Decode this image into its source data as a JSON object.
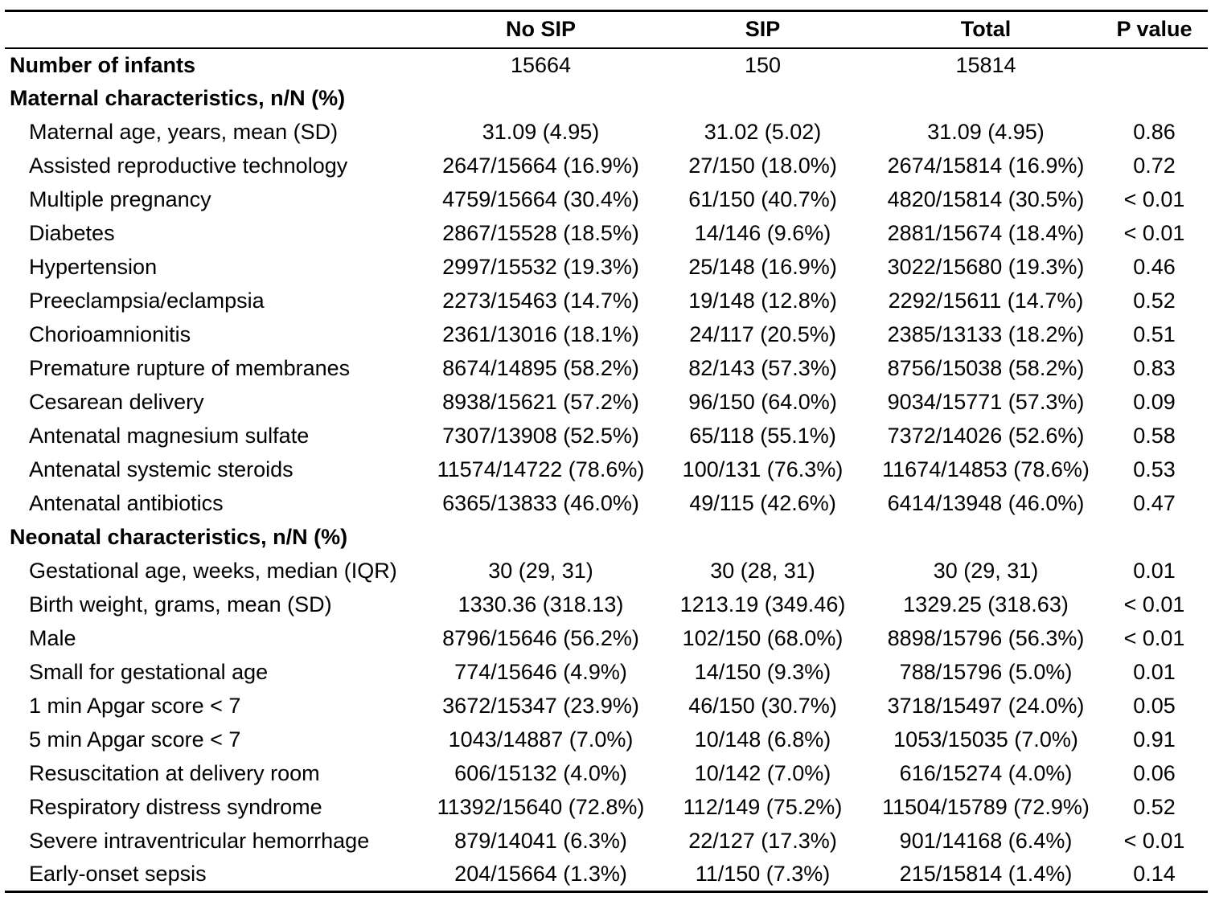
{
  "table": {
    "columns": [
      "",
      "No SIP",
      "SIP",
      "Total",
      "P value"
    ],
    "count_row": {
      "label": "Number of infants",
      "values": [
        "15664",
        "150",
        "15814",
        ""
      ]
    },
    "sections": [
      {
        "title": "Maternal characteristics, n/N (%)",
        "rows": [
          {
            "label": "Maternal age, years, mean (SD)",
            "values": [
              "31.09 (4.95)",
              "31.02 (5.02)",
              "31.09 (4.95)",
              "0.86"
            ]
          },
          {
            "label": "Assisted reproductive technology",
            "values": [
              "2647/15664 (16.9%)",
              "27/150 (18.0%)",
              "2674/15814 (16.9%)",
              "0.72"
            ]
          },
          {
            "label": "Multiple pregnancy",
            "values": [
              "4759/15664 (30.4%)",
              "61/150 (40.7%)",
              "4820/15814 (30.5%)",
              "< 0.01"
            ]
          },
          {
            "label": "Diabetes",
            "values": [
              "2867/15528 (18.5%)",
              "14/146 (9.6%)",
              "2881/15674 (18.4%)",
              "< 0.01"
            ]
          },
          {
            "label": "Hypertension",
            "values": [
              "2997/15532 (19.3%)",
              "25/148 (16.9%)",
              "3022/15680 (19.3%)",
              "0.46"
            ]
          },
          {
            "label": "Preeclampsia/eclampsia",
            "values": [
              "2273/15463 (14.7%)",
              "19/148 (12.8%)",
              "2292/15611 (14.7%)",
              "0.52"
            ]
          },
          {
            "label": "Chorioamnionitis",
            "values": [
              "2361/13016 (18.1%)",
              "24/117 (20.5%)",
              "2385/13133 (18.2%)",
              "0.51"
            ]
          },
          {
            "label": "Premature rupture of membranes",
            "values": [
              "8674/14895 (58.2%)",
              "82/143 (57.3%)",
              "8756/15038 (58.2%)",
              "0.83"
            ]
          },
          {
            "label": "Cesarean delivery",
            "values": [
              "8938/15621 (57.2%)",
              "96/150 (64.0%)",
              "9034/15771 (57.3%)",
              "0.09"
            ]
          },
          {
            "label": "Antenatal magnesium sulfate",
            "values": [
              "7307/13908 (52.5%)",
              "65/118 (55.1%)",
              "7372/14026 (52.6%)",
              "0.58"
            ]
          },
          {
            "label": "Antenatal systemic steroids",
            "values": [
              "11574/14722 (78.6%)",
              "100/131 (76.3%)",
              "11674/14853 (78.6%)",
              "0.53"
            ]
          },
          {
            "label": "Antenatal antibiotics",
            "values": [
              "6365/13833 (46.0%)",
              "49/115 (42.6%)",
              "6414/13948 (46.0%)",
              "0.47"
            ]
          }
        ]
      },
      {
        "title": "Neonatal characteristics, n/N (%)",
        "rows": [
          {
            "label": "Gestational age, weeks, median (IQR)",
            "values": [
              "30 (29, 31)",
              "30 (28, 31)",
              "30 (29, 31)",
              "0.01"
            ]
          },
          {
            "label": "Birth weight, grams, mean (SD)",
            "values": [
              "1330.36 (318.13)",
              "1213.19 (349.46)",
              "1329.25 (318.63)",
              "< 0.01"
            ]
          },
          {
            "label": "Male",
            "values": [
              "8796/15646 (56.2%)",
              "102/150 (68.0%)",
              "8898/15796 (56.3%)",
              "< 0.01"
            ]
          },
          {
            "label": "Small for gestational age",
            "values": [
              "774/15646 (4.9%)",
              "14/150 (9.3%)",
              "788/15796 (5.0%)",
              "0.01"
            ]
          },
          {
            "label": "1 min Apgar score < 7",
            "values": [
              "3672/15347 (23.9%)",
              "46/150 (30.7%)",
              "3718/15497 (24.0%)",
              "0.05"
            ]
          },
          {
            "label": "5 min Apgar score < 7",
            "values": [
              "1043/14887 (7.0%)",
              "10/148 (6.8%)",
              "1053/15035 (7.0%)",
              "0.91"
            ]
          },
          {
            "label": "Resuscitation at delivery room",
            "values": [
              "606/15132 (4.0%)",
              "10/142 (7.0%)",
              "616/15274 (4.0%)",
              "0.06"
            ]
          },
          {
            "label": "Respiratory distress syndrome",
            "values": [
              "11392/15640 (72.8%)",
              "112/149 (75.2%)",
              "11504/15789 (72.9%)",
              "0.52"
            ]
          },
          {
            "label": "Severe intraventricular hemorrhage",
            "values": [
              "879/14041 (6.3%)",
              "22/127 (17.3%)",
              "901/14168 (6.4%)",
              "< 0.01"
            ]
          },
          {
            "label": "Early-onset sepsis",
            "values": [
              "204/15664 (1.3%)",
              "11/150 (7.3%)",
              "215/15814 (1.4%)",
              "0.14"
            ]
          }
        ]
      }
    ]
  }
}
